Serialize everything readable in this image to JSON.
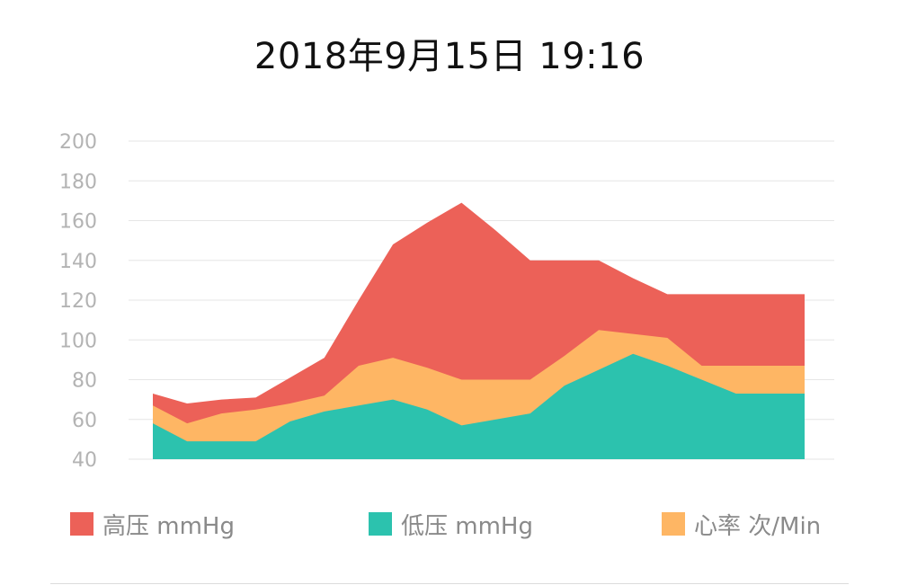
{
  "header": {
    "title": "2018年9月15日 19:16"
  },
  "chart_data": {
    "type": "area",
    "stacked": false,
    "ylim": [
      40,
      200
    ],
    "yticks": [
      200,
      180,
      160,
      140,
      120,
      100,
      80,
      60,
      40
    ],
    "grid": true,
    "legend_position": "bottom",
    "x": [
      1,
      2,
      3,
      4,
      5,
      6,
      7,
      8,
      9,
      10,
      11,
      12,
      13,
      14,
      15,
      16,
      17,
      18,
      19,
      20
    ],
    "series": [
      {
        "name": "高压 mmHg",
        "color": "#ec6158",
        "values": [
          73,
          68,
          70,
          71,
          81,
          91,
          120,
          148,
          159,
          169,
          155,
          140,
          140,
          140,
          131,
          123,
          123,
          123,
          123,
          123
        ]
      },
      {
        "name": "心率 次/Min",
        "color": "#feb664",
        "values": [
          67,
          58,
          63,
          65,
          68,
          72,
          87,
          91,
          86,
          80,
          80,
          80,
          92,
          105,
          103,
          101,
          87,
          87,
          87,
          87
        ]
      },
      {
        "name": "低压 mmHg",
        "color": "#2cc2ae",
        "values": [
          58,
          49,
          49,
          49,
          59,
          64,
          67,
          70,
          65,
          57,
          60,
          63,
          77,
          85,
          93,
          87,
          80,
          73,
          73,
          73
        ]
      }
    ]
  },
  "legend": {
    "items": [
      {
        "label": "高压 mmHg",
        "color": "#ec6158"
      },
      {
        "label": "低压 mmHg",
        "color": "#2cc2ae"
      },
      {
        "label": "心率 次/Min",
        "color": "#feb664"
      }
    ]
  }
}
